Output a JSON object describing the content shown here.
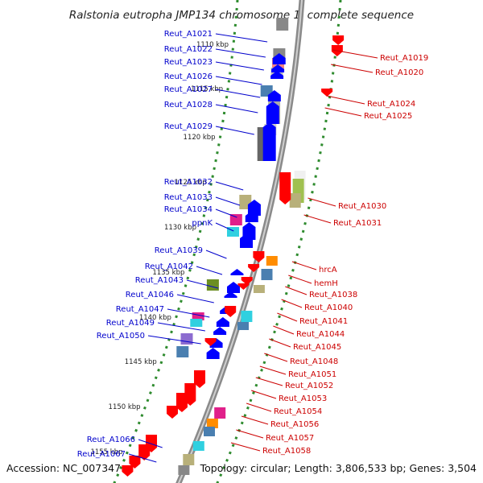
{
  "title": "Ralstonia eutropha JMP134 chromosome 1, complete sequence",
  "footer": {
    "accession": "Accession: NC_007347",
    "topology": "Topology: circular; Length: 3,806,533 bp; Genes: 3,504"
  },
  "colors": {
    "left_label": "#0000cc",
    "right_label": "#cc0000",
    "backbone": "#8a8a8a",
    "tick": "#2e8b2e"
  },
  "kbp_ticks": [
    "1110 kbp",
    "1115 kbp",
    "1120 kbp",
    "1125 kbp",
    "1130 kbp",
    "1135 kbp",
    "1140 kbp",
    "1145 kbp",
    "1150 kbp",
    "1155 kbp"
  ],
  "left_genes": [
    "Reut_A1021",
    "Reut_A1022",
    "Reut_A1023",
    "Reut_A1026",
    "Reut_A1027",
    "Reut_A1028",
    "Reut_A1029",
    "Reut_A1032",
    "Reut_A1033",
    "Reut_A1034",
    "ppnK",
    "Reut_A1039",
    "Reut_A1042",
    "Reut_A1043",
    "Reut_A1046",
    "Reut_A1047",
    "Reut_A1049",
    "Reut_A1050",
    "Reut_A1066",
    "Reut_A1067"
  ],
  "right_genes": [
    "Reut_A1019",
    "Reut_A1020",
    "Reut_A1024",
    "Reut_A1025",
    "Reut_A1030",
    "Reut_A1031",
    "hrcA",
    "hemH",
    "Reut_A1038",
    "Reut_A1040",
    "Reut_A1041",
    "Reut_A1044",
    "Reut_A1045",
    "Reut_A1048",
    "Reut_A1051",
    "Reut_A1052",
    "Reut_A1053",
    "Reut_A1054",
    "Reut_A1056",
    "Reut_A1057",
    "Reut_A1058"
  ]
}
